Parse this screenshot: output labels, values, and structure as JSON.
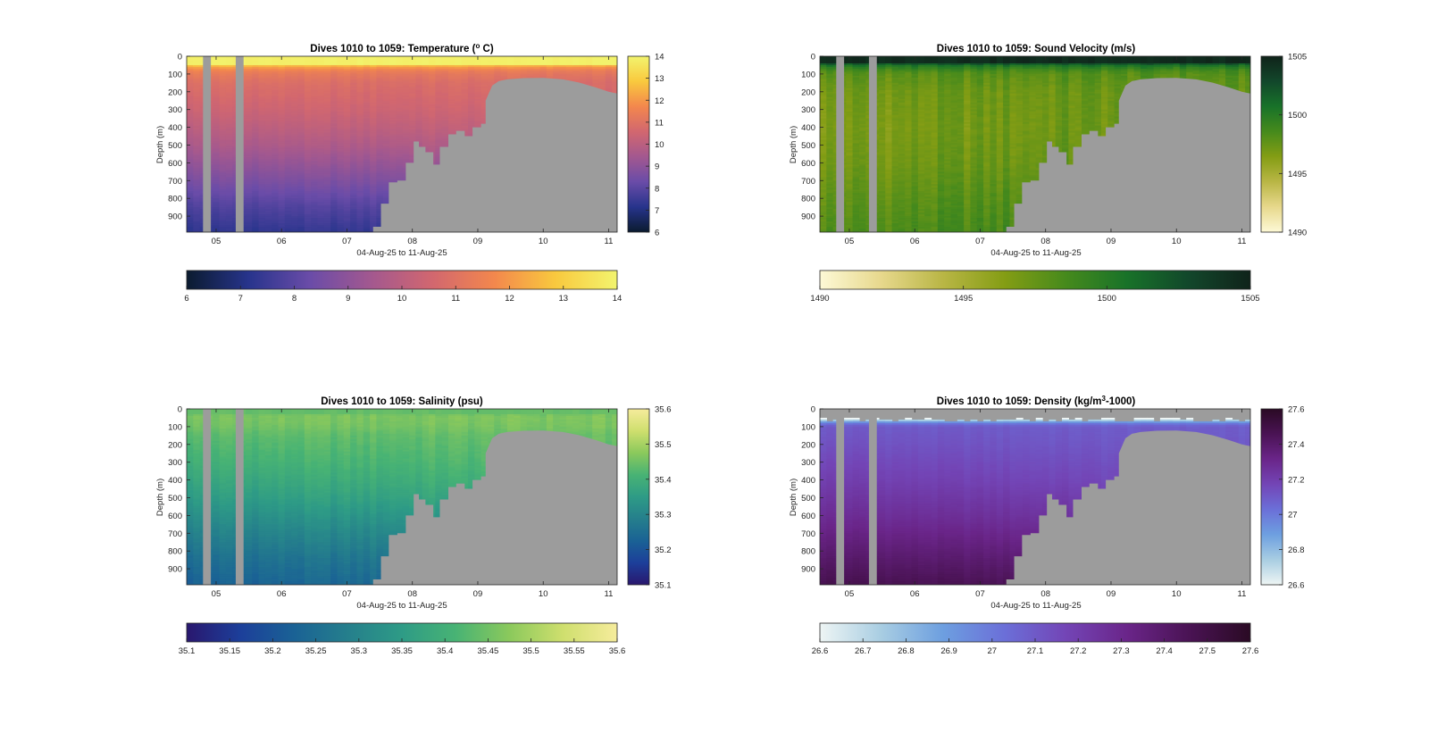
{
  "figure": {
    "background": "#ffffff"
  },
  "chart_data": [
    {
      "type": "heatmap",
      "title": "Dives 1010 to 1059: Temperature (",
      "title_sup": "o",
      "title_tail": " C)",
      "ylabel": "Depth (m)",
      "xlabel": "04-Aug-25 to 11-Aug-25",
      "xlim": [
        4.55,
        11.13
      ],
      "ylim": [
        990,
        0
      ],
      "xticks": [
        5,
        6,
        7,
        8,
        9,
        10,
        11
      ],
      "xtick_labels": [
        "05",
        "06",
        "07",
        "08",
        "09",
        "10",
        "11"
      ],
      "yticks": [
        0,
        100,
        200,
        300,
        400,
        500,
        600,
        700,
        800,
        900
      ],
      "ytick_labels": [
        "0",
        "100",
        "200",
        "300",
        "400",
        "500",
        "600",
        "700",
        "800",
        "900"
      ],
      "clim": [
        6,
        14
      ],
      "colorbar_ticks": [
        6,
        7,
        8,
        9,
        10,
        11,
        12,
        13,
        14
      ],
      "colorbar_tick_labels": [
        "6",
        "7",
        "8",
        "9",
        "10",
        "11",
        "12",
        "13",
        "14"
      ],
      "colormap": [
        "#0b1b2f",
        "#27348c",
        "#6a4ca8",
        "#a3588f",
        "#d2676f",
        "#f3874d",
        "#f9c93e",
        "#f2f46e"
      ],
      "no_data_color": "#9c9c9c",
      "gaps": [
        [
          4.8,
          4.92
        ],
        [
          5.3,
          5.42
        ]
      ],
      "bathymetry": [
        [
          4.55,
          1000
        ],
        [
          7.4,
          1000
        ],
        [
          7.4,
          960
        ],
        [
          7.52,
          960
        ],
        [
          7.52,
          830
        ],
        [
          7.64,
          830
        ],
        [
          7.64,
          710
        ],
        [
          7.77,
          710
        ],
        [
          7.77,
          700
        ],
        [
          7.9,
          700
        ],
        [
          7.9,
          600
        ],
        [
          8.02,
          600
        ],
        [
          8.02,
          480
        ],
        [
          8.1,
          480
        ],
        [
          8.1,
          510
        ],
        [
          8.2,
          510
        ],
        [
          8.2,
          540
        ],
        [
          8.32,
          540
        ],
        [
          8.32,
          610
        ],
        [
          8.42,
          610
        ],
        [
          8.42,
          510
        ],
        [
          8.55,
          510
        ],
        [
          8.55,
          440
        ],
        [
          8.67,
          440
        ],
        [
          8.67,
          420
        ],
        [
          8.8,
          420
        ],
        [
          8.8,
          450
        ],
        [
          8.92,
          450
        ],
        [
          8.92,
          400
        ],
        [
          9.05,
          400
        ],
        [
          9.05,
          380
        ],
        [
          9.12,
          380
        ],
        [
          9.12,
          250
        ],
        [
          9.22,
          165
        ],
        [
          9.32,
          140
        ],
        [
          9.45,
          130
        ],
        [
          9.7,
          123
        ],
        [
          10.0,
          122
        ],
        [
          10.3,
          130
        ],
        [
          10.55,
          148
        ],
        [
          10.8,
          175
        ],
        [
          11.0,
          200
        ],
        [
          11.13,
          210
        ],
        [
          11.13,
          1000
        ]
      ],
      "profile_depth": [
        0,
        40,
        60,
        80,
        100,
        150,
        300,
        500,
        700,
        850,
        1000
      ],
      "profile_value": [
        13.9,
        13.6,
        12.3,
        11.6,
        11.3,
        10.9,
        10.4,
        9.6,
        8.6,
        7.8,
        7.2
      ],
      "mixed_layer_depth": 45,
      "cast_spacing_days": 0.1,
      "east_shift": 0.25,
      "east_shift_surface": -0.4,
      "variability": 0.12
    },
    {
      "type": "heatmap",
      "title": "Dives 1010 to 1059: Sound Velocity (m/s)",
      "title_sup": "",
      "title_tail": "",
      "ylabel": "Depth (m)",
      "xlabel": "04-Aug-25 to 11-Aug-25",
      "xlim": [
        4.55,
        11.13
      ],
      "ylim": [
        990,
        0
      ],
      "xticks": [
        5,
        6,
        7,
        8,
        9,
        10,
        11
      ],
      "xtick_labels": [
        "05",
        "06",
        "07",
        "08",
        "09",
        "10",
        "11"
      ],
      "yticks": [
        0,
        100,
        200,
        300,
        400,
        500,
        600,
        700,
        800,
        900
      ],
      "ytick_labels": [
        "0",
        "100",
        "200",
        "300",
        "400",
        "500",
        "600",
        "700",
        "800",
        "900"
      ],
      "clim": [
        1490,
        1505
      ],
      "colorbar_ticks": [
        1490,
        1495,
        1500,
        1505
      ],
      "colorbar_tick_labels": [
        "1490",
        "1495",
        "1500",
        "1505"
      ],
      "colormap": [
        "#fdf9d6",
        "#e7d88c",
        "#b9b645",
        "#849d14",
        "#468a1c",
        "#187229",
        "#12472b",
        "#10231a"
      ],
      "no_data_color": "#9c9c9c",
      "gaps": [
        [
          4.8,
          4.92
        ],
        [
          5.3,
          5.42
        ]
      ],
      "bathymetry": [
        [
          4.55,
          1000
        ],
        [
          7.4,
          1000
        ],
        [
          7.4,
          960
        ],
        [
          7.52,
          960
        ],
        [
          7.52,
          830
        ],
        [
          7.64,
          830
        ],
        [
          7.64,
          710
        ],
        [
          7.77,
          710
        ],
        [
          7.77,
          700
        ],
        [
          7.9,
          700
        ],
        [
          7.9,
          600
        ],
        [
          8.02,
          600
        ],
        [
          8.02,
          480
        ],
        [
          8.1,
          480
        ],
        [
          8.1,
          510
        ],
        [
          8.2,
          510
        ],
        [
          8.2,
          540
        ],
        [
          8.32,
          540
        ],
        [
          8.32,
          610
        ],
        [
          8.42,
          610
        ],
        [
          8.42,
          510
        ],
        [
          8.55,
          510
        ],
        [
          8.55,
          440
        ],
        [
          8.67,
          440
        ],
        [
          8.67,
          420
        ],
        [
          8.8,
          420
        ],
        [
          8.8,
          450
        ],
        [
          8.92,
          450
        ],
        [
          8.92,
          400
        ],
        [
          9.05,
          400
        ],
        [
          9.05,
          380
        ],
        [
          9.12,
          380
        ],
        [
          9.12,
          250
        ],
        [
          9.22,
          165
        ],
        [
          9.32,
          140
        ],
        [
          9.45,
          130
        ],
        [
          9.7,
          123
        ],
        [
          10.0,
          122
        ],
        [
          10.3,
          130
        ],
        [
          10.55,
          148
        ],
        [
          10.8,
          175
        ],
        [
          11.0,
          200
        ],
        [
          11.13,
          210
        ],
        [
          11.13,
          1000
        ]
      ],
      "profile_depth": [
        0,
        30,
        55,
        80,
        100,
        200,
        400,
        600,
        800,
        1000
      ],
      "profile_value": [
        1504.5,
        1504.0,
        1500.2,
        1498.5,
        1497.8,
        1497.0,
        1496.6,
        1496.9,
        1497.6,
        1498.2
      ],
      "mixed_layer_depth": 35,
      "cast_spacing_days": 0.1,
      "east_shift": 1.0,
      "east_shift_surface": 0,
      "variability": 0.7
    },
    {
      "type": "heatmap",
      "title": "Dives 1010 to 1059: Salinity (psu)",
      "title_sup": "",
      "title_tail": "",
      "ylabel": "Depth (m)",
      "xlabel": "04-Aug-25 to 11-Aug-25",
      "xlim": [
        4.55,
        11.13
      ],
      "ylim": [
        990,
        0
      ],
      "xticks": [
        5,
        6,
        7,
        8,
        9,
        10,
        11
      ],
      "xtick_labels": [
        "05",
        "06",
        "07",
        "08",
        "09",
        "10",
        "11"
      ],
      "yticks": [
        0,
        100,
        200,
        300,
        400,
        500,
        600,
        700,
        800,
        900
      ],
      "ytick_labels": [
        "0",
        "100",
        "200",
        "300",
        "400",
        "500",
        "600",
        "700",
        "800",
        "900"
      ],
      "clim": [
        35.1,
        35.6
      ],
      "colorbar_ticks": [
        35.1,
        35.15,
        35.2,
        35.25,
        35.3,
        35.35,
        35.4,
        35.45,
        35.5,
        35.55,
        35.6
      ],
      "colorbar_tick_labels": [
        "35.1",
        "35.15",
        "35.2",
        "35.25",
        "35.3",
        "35.35",
        "35.4",
        "35.45",
        "35.5",
        "35.55",
        "35.6"
      ],
      "colormap": [
        "#29176e",
        "#1c3f9a",
        "#1a6295",
        "#257f8c",
        "#2e9b86",
        "#48b374",
        "#8bc95c",
        "#cfdf6e",
        "#f6ec9c"
      ],
      "no_data_color": "#9c9c9c",
      "gaps": [
        [
          4.8,
          4.92
        ],
        [
          5.3,
          5.42
        ]
      ],
      "bathymetry": [
        [
          4.55,
          1000
        ],
        [
          7.4,
          1000
        ],
        [
          7.4,
          960
        ],
        [
          7.52,
          960
        ],
        [
          7.52,
          830
        ],
        [
          7.64,
          830
        ],
        [
          7.64,
          710
        ],
        [
          7.77,
          710
        ],
        [
          7.77,
          700
        ],
        [
          7.9,
          700
        ],
        [
          7.9,
          600
        ],
        [
          8.02,
          600
        ],
        [
          8.02,
          480
        ],
        [
          8.1,
          480
        ],
        [
          8.1,
          510
        ],
        [
          8.2,
          510
        ],
        [
          8.2,
          540
        ],
        [
          8.32,
          540
        ],
        [
          8.32,
          610
        ],
        [
          8.42,
          610
        ],
        [
          8.42,
          510
        ],
        [
          8.55,
          510
        ],
        [
          8.55,
          440
        ],
        [
          8.67,
          440
        ],
        [
          8.67,
          420
        ],
        [
          8.8,
          420
        ],
        [
          8.8,
          450
        ],
        [
          8.92,
          450
        ],
        [
          8.92,
          400
        ],
        [
          9.05,
          400
        ],
        [
          9.05,
          380
        ],
        [
          9.12,
          380
        ],
        [
          9.12,
          250
        ],
        [
          9.22,
          165
        ],
        [
          9.32,
          140
        ],
        [
          9.45,
          130
        ],
        [
          9.7,
          123
        ],
        [
          10.0,
          122
        ],
        [
          10.3,
          130
        ],
        [
          10.55,
          148
        ],
        [
          10.8,
          175
        ],
        [
          11.0,
          200
        ],
        [
          11.13,
          210
        ],
        [
          11.13,
          1000
        ]
      ],
      "profile_depth": [
        0,
        50,
        100,
        150,
        300,
        500,
        700,
        850,
        1000
      ],
      "profile_value": [
        35.44,
        35.46,
        35.45,
        35.43,
        35.4,
        35.35,
        35.29,
        35.25,
        35.22
      ],
      "mixed_layer_depth": 30,
      "cast_spacing_days": 0.1,
      "east_shift": 0.04,
      "east_shift_surface": 0,
      "variability": 0.012
    },
    {
      "type": "heatmap",
      "title": "Dives 1010 to 1059: Density (kg/m",
      "title_sup": "3",
      "title_tail": "-1000)",
      "ylabel": "Depth (m)",
      "xlabel": "04-Aug-25 to 11-Aug-25",
      "xlim": [
        4.55,
        11.13
      ],
      "ylim": [
        990,
        0
      ],
      "xticks": [
        5,
        6,
        7,
        8,
        9,
        10,
        11
      ],
      "xtick_labels": [
        "05",
        "06",
        "07",
        "08",
        "09",
        "10",
        "11"
      ],
      "yticks": [
        0,
        100,
        200,
        300,
        400,
        500,
        600,
        700,
        800,
        900
      ],
      "ytick_labels": [
        "0",
        "100",
        "200",
        "300",
        "400",
        "500",
        "600",
        "700",
        "800",
        "900"
      ],
      "clim": [
        26.6,
        27.6
      ],
      "colorbar_ticks": [
        26.6,
        26.7,
        26.8,
        26.9,
        27.0,
        27.1,
        27.2,
        27.3,
        27.4,
        27.5,
        27.6
      ],
      "colorbar_tick_labels": [
        "26.6",
        "26.7",
        "26.8",
        "26.9",
        "27",
        "27.1",
        "27.2",
        "27.3",
        "27.4",
        "27.5",
        "27.6"
      ],
      "colormap": [
        "#eef5f4",
        "#a8cde2",
        "#6d9fe0",
        "#6b6fd8",
        "#7345b6",
        "#6a2589",
        "#4a1354",
        "#2a0a24"
      ],
      "no_data_color": "#9c9c9c",
      "gaps": [
        [
          4.8,
          4.92
        ],
        [
          5.3,
          5.42
        ]
      ],
      "bathymetry": [
        [
          4.55,
          1000
        ],
        [
          7.4,
          1000
        ],
        [
          7.4,
          960
        ],
        [
          7.52,
          960
        ],
        [
          7.52,
          830
        ],
        [
          7.64,
          830
        ],
        [
          7.64,
          710
        ],
        [
          7.77,
          710
        ],
        [
          7.77,
          700
        ],
        [
          7.9,
          700
        ],
        [
          7.9,
          600
        ],
        [
          8.02,
          600
        ],
        [
          8.02,
          480
        ],
        [
          8.1,
          480
        ],
        [
          8.1,
          510
        ],
        [
          8.2,
          510
        ],
        [
          8.2,
          540
        ],
        [
          8.32,
          540
        ],
        [
          8.32,
          610
        ],
        [
          8.42,
          610
        ],
        [
          8.42,
          510
        ],
        [
          8.55,
          510
        ],
        [
          8.55,
          440
        ],
        [
          8.67,
          440
        ],
        [
          8.67,
          420
        ],
        [
          8.8,
          420
        ],
        [
          8.8,
          450
        ],
        [
          8.92,
          450
        ],
        [
          8.92,
          400
        ],
        [
          9.05,
          400
        ],
        [
          9.05,
          380
        ],
        [
          9.12,
          380
        ],
        [
          9.12,
          250
        ],
        [
          9.22,
          165
        ],
        [
          9.32,
          140
        ],
        [
          9.45,
          130
        ],
        [
          9.7,
          123
        ],
        [
          10.0,
          122
        ],
        [
          10.3,
          130
        ],
        [
          10.55,
          148
        ],
        [
          10.8,
          175
        ],
        [
          11.0,
          200
        ],
        [
          11.13,
          210
        ],
        [
          11.13,
          1000
        ]
      ],
      "profile_depth": [
        0,
        55,
        65,
        80,
        100,
        200,
        400,
        600,
        800,
        1000
      ],
      "profile_value": [
        26.0,
        26.0,
        26.75,
        27.0,
        27.1,
        27.13,
        27.2,
        27.28,
        27.38,
        27.48
      ],
      "surface_nodata_depth": 55,
      "mixed_layer_depth": 0,
      "cast_spacing_days": 0.1,
      "east_shift": -0.06,
      "east_shift_surface": 0,
      "variability": 0.012
    }
  ]
}
